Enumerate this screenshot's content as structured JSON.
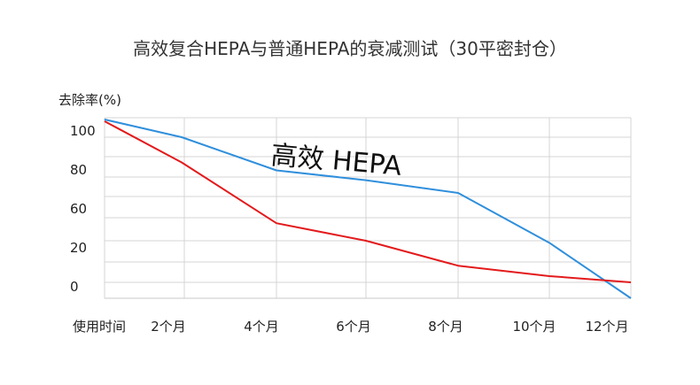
{
  "chart_data": {
    "type": "line",
    "title": "高效复合HEPA与普通HEPA的衰减测试（30平密封仓）",
    "ylabel": "去除率(%)",
    "xlabel": "使用时间",
    "x": [
      0,
      2,
      4,
      6,
      8,
      10,
      12
    ],
    "x_tick_labels": [
      "使用时间",
      "2个月",
      "4个月",
      "6个月",
      "8个月",
      "10个月",
      "12个月"
    ],
    "y_tick_labels": [
      "100",
      "80",
      "60",
      "20",
      "0"
    ],
    "grid": true,
    "series": [
      {
        "values": [
          100,
          90,
          65,
          58,
          50,
          19,
          -4
        ],
        "color": "#2f8fdc"
      },
      {
        "values": [
          99,
          71,
          31,
          20,
          8,
          3,
          0
        ],
        "color": "#e31a1c"
      }
    ],
    "annotations": [
      {
        "text": "高效 HEPA"
      }
    ]
  }
}
